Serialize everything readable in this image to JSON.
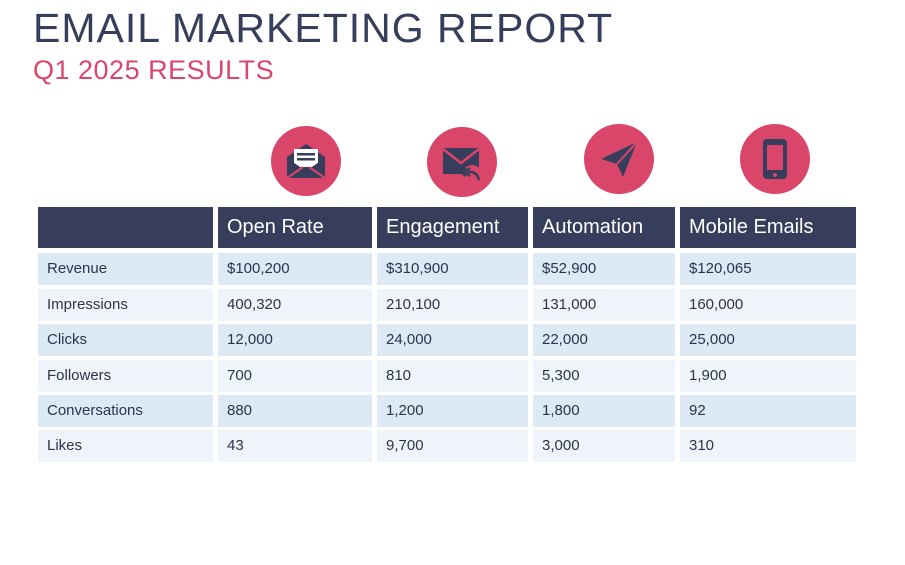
{
  "title": "EMAIL MARKETING REPORT",
  "subtitle": "Q1 2025 RESULTS",
  "colors": {
    "navy": "#363e5b",
    "accent": "#d9466a",
    "row_dark": "#dde9f4",
    "row_light": "#eef4f9"
  },
  "icons": [
    "open-envelope-icon",
    "reply-envelope-icon",
    "paper-plane-icon",
    "mobile-phone-icon"
  ],
  "columns": [
    "",
    "Open Rate",
    "Engagement",
    "Automation",
    "Mobile Emails"
  ],
  "rows": [
    {
      "label": "Revenue",
      "values": [
        "$100,200",
        "$310,900",
        "$52,900",
        "$120,065"
      ]
    },
    {
      "label": "Impressions",
      "values": [
        "400,320",
        "210,100",
        "131,000",
        "160,000"
      ]
    },
    {
      "label": "Clicks",
      "values": [
        "12,000",
        "24,000",
        "22,000",
        "25,000"
      ]
    },
    {
      "label": "Followers",
      "values": [
        "700",
        "810",
        "5,300",
        "1,900"
      ]
    },
    {
      "label": "Conversations",
      "values": [
        "880",
        "1,200",
        "1,800",
        "92"
      ]
    },
    {
      "label": "Likes",
      "values": [
        "43",
        "9,700",
        "3,000",
        "310"
      ]
    }
  ]
}
